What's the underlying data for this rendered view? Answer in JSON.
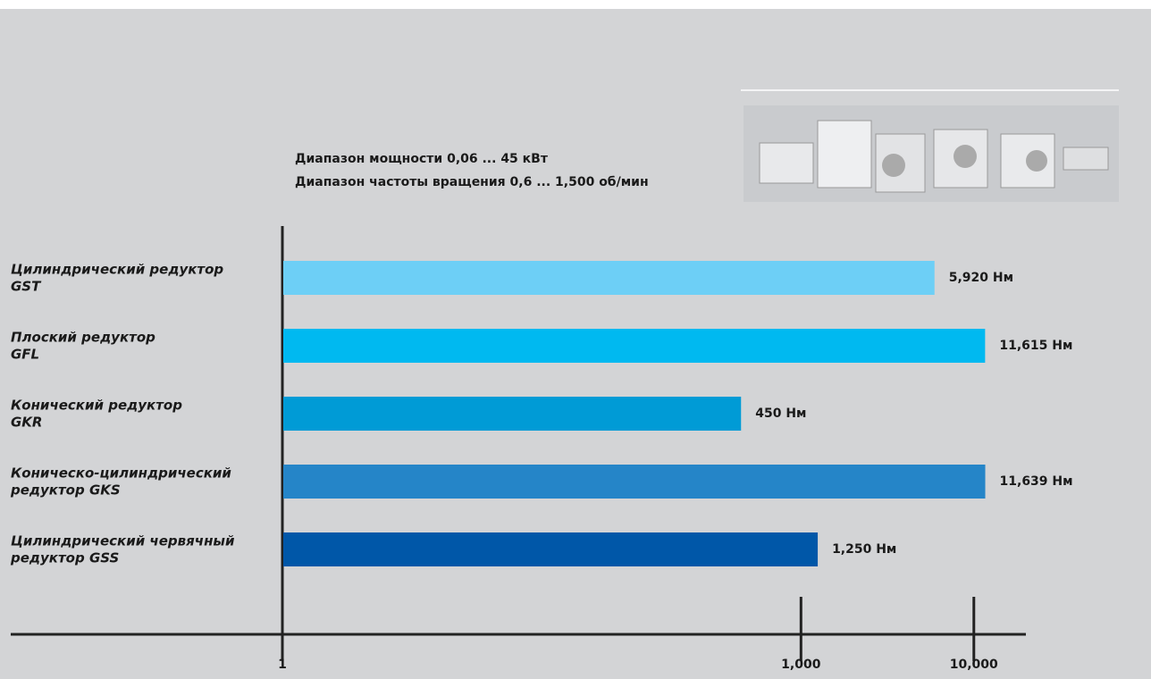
{
  "chart_data": {
    "type": "bar",
    "orientation": "horizontal",
    "subtitle": [
      "Диапазон мощности 0,06 ... 45 кВт",
      "Диапазон частоты вращения 0,6 ... 1,500 об/мин"
    ],
    "categories": [
      [
        "Цилиндрический редуктор",
        "GST"
      ],
      [
        "Плоский редуктор",
        "GFL"
      ],
      [
        "Конический редуктор",
        "GKR"
      ],
      [
        "Коническо-цилиндрический",
        "редуктор GKS"
      ],
      [
        "Цилиндрический червячный",
        "редуктор GSS"
      ]
    ],
    "values": [
      5920,
      11615,
      450,
      11639,
      1250
    ],
    "value_labels": [
      "5,920 Нм",
      "11,615 Нм",
      "450 Нм",
      "11,639 Нм",
      "1,250 Нм"
    ],
    "colors": [
      "#6dcff6",
      "#00b9f0",
      "#009bd6",
      "#2585c8",
      "#0057a8"
    ],
    "log_scale": true,
    "xlim": [
      1,
      20000
    ],
    "xticks": [
      1,
      {
        "value": 1000,
        "label": "1,000"
      },
      {
        "value": 10000,
        "label": "10,000"
      }
    ]
  }
}
